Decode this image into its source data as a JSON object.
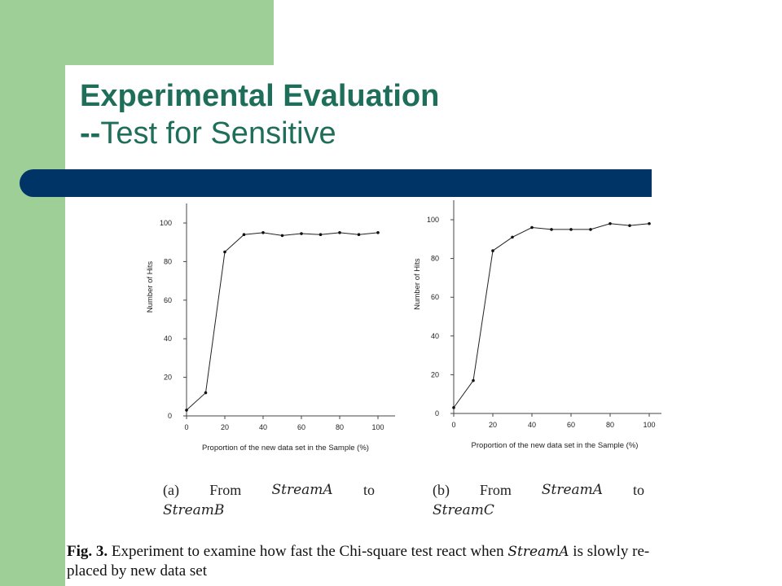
{
  "slide": {
    "title_main": "Experimental Evaluation",
    "title_dashes": "--",
    "title_sub": "Test for Sensitive"
  },
  "chart_data": [
    {
      "type": "line",
      "xlabel": "Proportion of the new data set in the Sample (%)",
      "ylabel": "Number of Hits",
      "xlim": [
        0,
        100
      ],
      "ylim": [
        0,
        100
      ],
      "x_ticks": [
        0,
        20,
        40,
        60,
        80,
        100
      ],
      "y_ticks": [
        0,
        20,
        40,
        60,
        80,
        100
      ],
      "series": [
        {
          "x": [
            0,
            10,
            20,
            30,
            40,
            50,
            60,
            70,
            80,
            90,
            100
          ],
          "y": [
            3,
            12,
            85,
            94,
            95,
            93.5,
            94.5,
            94,
            95,
            94,
            95
          ]
        }
      ],
      "caption": {
        "label": "(a)",
        "from": "From",
        "src": "StreamA",
        "to": "to",
        "dst": "StreamB"
      }
    },
    {
      "type": "line",
      "xlabel": "Proportion of the new data set in the Sample (%)",
      "ylabel": "Number of Hits",
      "xlim": [
        0,
        100
      ],
      "ylim": [
        0,
        100
      ],
      "x_ticks": [
        0,
        20,
        40,
        60,
        80,
        100
      ],
      "y_ticks": [
        0,
        20,
        40,
        60,
        80,
        100
      ],
      "series": [
        {
          "x": [
            0,
            10,
            20,
            30,
            40,
            50,
            60,
            70,
            80,
            90,
            100
          ],
          "y": [
            3,
            17,
            84,
            91,
            96,
            95,
            95,
            95,
            98,
            97,
            98
          ]
        }
      ],
      "caption": {
        "label": "(b)",
        "from": "From",
        "src": "StreamA",
        "to": "to",
        "dst": "StreamC"
      }
    }
  ],
  "figure_caption": {
    "label": "Fig. 3.",
    "text_before": "Experiment to examine how fast the Chi-square test react when",
    "stream": "StreamA",
    "text_after": "is slowly re-",
    "line2": "placed by new data set"
  }
}
